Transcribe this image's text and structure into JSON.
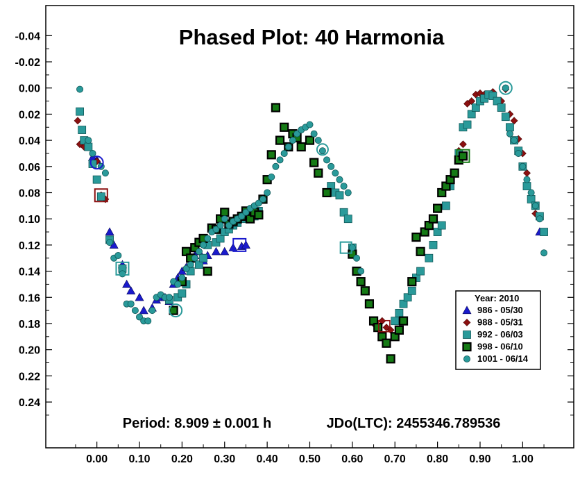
{
  "chart_data": {
    "type": "scatter",
    "title": "Phased Plot: 40 Harmonia",
    "period_text": "Period: 8.909 ± 0.001 h",
    "epoch_text": "JDo(LTC): 2455346.789536",
    "xlim": [
      -0.12,
      1.12
    ],
    "ylim": [
      -0.063,
      0.275
    ],
    "y_inverted": true,
    "grid": false,
    "legend_placement": "bottom-right",
    "x_ticks": [
      {
        "value": 0.0,
        "label": "0.00"
      },
      {
        "value": 0.1,
        "label": "0.10"
      },
      {
        "value": 0.2,
        "label": "0.20"
      },
      {
        "value": 0.3,
        "label": "0.30"
      },
      {
        "value": 0.4,
        "label": "0.40"
      },
      {
        "value": 0.5,
        "label": "0.50"
      },
      {
        "value": 0.6,
        "label": "0.60"
      },
      {
        "value": 0.7,
        "label": "0.70"
      },
      {
        "value": 0.8,
        "label": "0.80"
      },
      {
        "value": 0.9,
        "label": "0.90"
      },
      {
        "value": 1.0,
        "label": "1.00"
      }
    ],
    "y_ticks": [
      {
        "value": -0.04,
        "label": "-0.04"
      },
      {
        "value": -0.02,
        "label": "-0.02"
      },
      {
        "value": 0.0,
        "label": "0.00"
      },
      {
        "value": 0.02,
        "label": "0.02"
      },
      {
        "value": 0.04,
        "label": "0.04"
      },
      {
        "value": 0.06,
        "label": "0.06"
      },
      {
        "value": 0.08,
        "label": "0.08"
      },
      {
        "value": 0.1,
        "label": "0.10"
      },
      {
        "value": 0.12,
        "label": "0.12"
      },
      {
        "value": 0.14,
        "label": "0.14"
      },
      {
        "value": 0.16,
        "label": "0.16"
      },
      {
        "value": 0.18,
        "label": "0.18"
      },
      {
        "value": 0.2,
        "label": "0.20"
      },
      {
        "value": 0.22,
        "label": "0.22"
      },
      {
        "value": 0.24,
        "label": "0.24"
      }
    ],
    "legend_title": "Year: 2010",
    "series": [
      {
        "name": "986 - 05/30",
        "marker": "triangle",
        "color": "#1a1acc",
        "epoch_phase": 0.0,
        "epoch_mag": 0.057,
        "x": [
          -0.01,
          0.0,
          0.03,
          0.04,
          0.06,
          0.07,
          0.08,
          0.1,
          0.11,
          0.13,
          0.14,
          0.15,
          0.16,
          0.17,
          0.18,
          0.19,
          0.2,
          0.21,
          0.22,
          0.23,
          0.24,
          0.25,
          0.26,
          0.28,
          0.3,
          0.32,
          0.34,
          0.35,
          1.04
        ],
        "y": [
          0.053,
          0.055,
          0.11,
          0.12,
          0.135,
          0.15,
          0.155,
          0.16,
          0.17,
          0.168,
          0.162,
          0.16,
          0.16,
          0.163,
          0.15,
          0.145,
          0.14,
          0.137,
          0.13,
          0.128,
          0.125,
          0.132,
          0.128,
          0.125,
          0.125,
          0.122,
          0.121,
          0.12,
          0.11
        ]
      },
      {
        "name": "988 - 05/31",
        "marker": "diamond",
        "color": "#8b1010",
        "epoch_phase": 0.01,
        "epoch_mag": 0.082,
        "x": [
          -0.045,
          -0.04,
          -0.03,
          0.0,
          0.01,
          0.02,
          0.65,
          0.66,
          0.67,
          0.68,
          0.69,
          0.71,
          0.85,
          0.86,
          0.87,
          0.88,
          0.89,
          0.9,
          0.91,
          0.93,
          0.95,
          0.96,
          0.97,
          0.98,
          0.99,
          1.0,
          1.01,
          1.03
        ],
        "y": [
          0.025,
          0.043,
          0.045,
          0.056,
          0.082,
          0.085,
          0.18,
          0.182,
          0.178,
          0.183,
          0.185,
          0.178,
          0.048,
          0.043,
          0.012,
          0.01,
          0.005,
          0.004,
          0.005,
          0.003,
          0.01,
          0.001,
          0.02,
          0.025,
          0.039,
          0.05,
          0.065,
          0.096
        ]
      },
      {
        "name": "992 - 06/03",
        "marker": "square",
        "color": "#2a9a9a",
        "epoch_phase": 0.06,
        "epoch_mag": 0.138,
        "x": [
          -0.04,
          -0.035,
          -0.03,
          -0.02,
          -0.01,
          0.0,
          0.01,
          0.03,
          0.06,
          0.17,
          0.19,
          0.2,
          0.21,
          0.22,
          0.24,
          0.25,
          0.26,
          0.28,
          0.29,
          0.3,
          0.31,
          0.32,
          0.33,
          0.34,
          0.35,
          0.36,
          0.37,
          0.38,
          0.55,
          0.56,
          0.57,
          0.58,
          0.59,
          0.6,
          0.7,
          0.71,
          0.72,
          0.73,
          0.74,
          0.75,
          0.76,
          0.78,
          0.79,
          0.8,
          0.81,
          0.82,
          0.83,
          0.84,
          0.85,
          0.86,
          0.87,
          0.88,
          0.89,
          0.9,
          0.91,
          0.92,
          0.93,
          0.94,
          0.95,
          0.96,
          0.97,
          0.98,
          0.99,
          1.0,
          1.01,
          1.02,
          1.03,
          1.04,
          1.05
        ],
        "y": [
          0.018,
          0.032,
          0.04,
          0.045,
          0.058,
          0.07,
          0.083,
          0.116,
          0.138,
          0.162,
          0.16,
          0.157,
          0.15,
          0.14,
          0.135,
          0.13,
          0.12,
          0.118,
          0.115,
          0.11,
          0.108,
          0.105,
          0.103,
          0.1,
          0.098,
          0.097,
          0.098,
          0.094,
          0.075,
          0.08,
          0.082,
          0.095,
          0.1,
          0.122,
          0.178,
          0.172,
          0.165,
          0.16,
          0.155,
          0.145,
          0.14,
          0.13,
          0.12,
          0.11,
          0.105,
          0.09,
          0.075,
          0.065,
          0.05,
          0.03,
          0.028,
          0.02,
          0.015,
          0.01,
          0.008,
          0.005,
          0.006,
          0.01,
          0.015,
          0.022,
          0.03,
          0.04,
          0.048,
          0.06,
          0.075,
          0.085,
          0.09,
          0.098,
          0.11
        ]
      },
      {
        "name": "998 - 06/10",
        "marker": "square-outline",
        "color": "#157a15",
        "epoch_phase": 0.86,
        "epoch_mag": 0.052,
        "x": [
          0.18,
          0.2,
          0.21,
          0.22,
          0.23,
          0.24,
          0.25,
          0.26,
          0.27,
          0.28,
          0.29,
          0.3,
          0.31,
          0.32,
          0.33,
          0.34,
          0.35,
          0.36,
          0.37,
          0.38,
          0.39,
          0.4,
          0.41,
          0.42,
          0.43,
          0.44,
          0.45,
          0.46,
          0.47,
          0.48,
          0.5,
          0.51,
          0.52,
          0.54,
          0.6,
          0.61,
          0.62,
          0.63,
          0.64,
          0.65,
          0.66,
          0.67,
          0.68,
          0.69,
          0.7,
          0.71,
          0.72,
          0.74,
          0.75,
          0.76,
          0.77,
          0.78,
          0.79,
          0.8,
          0.81,
          0.82,
          0.83,
          0.84,
          0.85,
          0.86
        ],
        "y": [
          0.17,
          0.148,
          0.125,
          0.13,
          0.122,
          0.118,
          0.115,
          0.14,
          0.107,
          0.108,
          0.1,
          0.095,
          0.104,
          0.102,
          0.1,
          0.098,
          0.094,
          0.1,
          0.095,
          0.097,
          0.085,
          0.07,
          0.051,
          0.015,
          0.04,
          0.03,
          0.045,
          0.035,
          0.038,
          0.045,
          0.04,
          0.057,
          0.065,
          0.08,
          0.127,
          0.14,
          0.148,
          0.155,
          0.165,
          0.178,
          0.183,
          0.19,
          0.195,
          0.207,
          0.19,
          0.185,
          0.178,
          0.148,
          0.114,
          0.125,
          0.11,
          0.105,
          0.1,
          0.092,
          0.08,
          0.075,
          0.07,
          0.065,
          0.055,
          0.052
        ]
      },
      {
        "name": "1001 - 06/14",
        "marker": "circle",
        "color": "#2a9a9a",
        "epoch_phase": 0.96,
        "epoch_mag": 0.0,
        "x": [
          -0.04,
          -0.02,
          -0.01,
          0.01,
          0.02,
          0.03,
          0.04,
          0.05,
          0.06,
          0.07,
          0.08,
          0.09,
          0.1,
          0.11,
          0.12,
          0.13,
          0.14,
          0.15,
          0.16,
          0.17,
          0.18,
          0.19,
          0.2,
          0.21,
          0.22,
          0.23,
          0.24,
          0.25,
          0.26,
          0.27,
          0.28,
          0.29,
          0.3,
          0.31,
          0.32,
          0.33,
          0.34,
          0.35,
          0.36,
          0.37,
          0.38,
          0.39,
          0.4,
          0.41,
          0.42,
          0.43,
          0.44,
          0.45,
          0.46,
          0.47,
          0.48,
          0.49,
          0.5,
          0.51,
          0.52,
          0.53,
          0.54,
          0.55,
          0.56,
          0.57,
          0.58,
          0.59,
          0.6,
          0.61,
          0.62,
          0.96,
          0.97,
          0.98,
          0.99,
          1.0,
          1.01,
          1.02,
          1.03,
          1.04,
          1.05
        ],
        "y": [
          0.001,
          0.04,
          0.05,
          0.06,
          0.065,
          0.118,
          0.13,
          0.128,
          0.142,
          0.165,
          0.165,
          0.17,
          0.175,
          0.178,
          0.178,
          0.17,
          0.16,
          0.158,
          0.16,
          0.16,
          0.148,
          0.15,
          0.145,
          0.138,
          0.135,
          0.13,
          0.125,
          0.12,
          0.115,
          0.11,
          0.108,
          0.105,
          0.1,
          0.105,
          0.102,
          0.1,
          0.098,
          0.095,
          0.092,
          0.09,
          0.088,
          0.085,
          0.08,
          0.068,
          0.06,
          0.055,
          0.05,
          0.045,
          0.04,
          0.035,
          0.032,
          0.03,
          0.028,
          0.035,
          0.04,
          0.048,
          0.055,
          0.06,
          0.065,
          0.07,
          0.075,
          0.08,
          0.122,
          0.13,
          0.14,
          0.0,
          0.035,
          0.04,
          0.05,
          0.06,
          0.07,
          0.08,
          0.09,
          0.1,
          0.126
        ]
      }
    ]
  }
}
